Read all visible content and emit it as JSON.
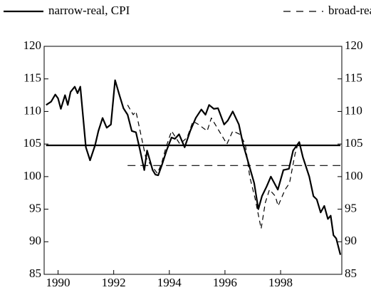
{
  "chart_data": {
    "type": "line",
    "x_ticks_note": null,
    "xlim": [
      1989.5,
      2000.2
    ],
    "xticks": [
      1990,
      1992,
      1994,
      1996,
      1998
    ],
    "ylim": [
      85,
      120
    ],
    "yticks": [
      85,
      90,
      95,
      100,
      105,
      110,
      115,
      120
    ],
    "legend": "top",
    "series": [
      {
        "name": "narrow-real, CPI",
        "color": "#000000",
        "dash": false,
        "x": [
          1989.57,
          1989.75,
          1989.9,
          1990.0,
          1990.1,
          1990.25,
          1990.35,
          1990.45,
          1990.6,
          1990.7,
          1990.8,
          1991.0,
          1991.15,
          1991.33,
          1991.45,
          1991.6,
          1991.75,
          1991.9,
          1992.05,
          1992.2,
          1992.35,
          1992.5,
          1992.65,
          1992.8,
          1992.95,
          1993.1,
          1993.2,
          1993.3,
          1993.4,
          1993.5,
          1993.6,
          1993.75,
          1993.9,
          1994.08,
          1994.2,
          1994.35,
          1994.55,
          1994.75,
          1994.95,
          1995.15,
          1995.3,
          1995.43,
          1995.6,
          1995.75,
          1995.97,
          1996.1,
          1996.28,
          1996.5,
          1996.65,
          1996.85,
          1997.05,
          1997.2,
          1997.33,
          1997.5,
          1997.65,
          1997.9,
          1998.1,
          1998.3,
          1998.45,
          1998.67,
          1998.8,
          1999.03,
          1999.18,
          1999.3,
          1999.44,
          1999.57,
          1999.7,
          1999.8,
          1999.9,
          2000.0,
          2000.15
        ],
        "values": [
          111,
          111.5,
          112.6,
          112,
          110.4,
          112.5,
          111,
          113,
          113.8,
          112.8,
          113.8,
          104.5,
          102.5,
          104.8,
          107,
          109,
          107.5,
          108,
          114.8,
          112.6,
          110.5,
          109.5,
          107,
          106.8,
          104,
          101,
          104,
          102.5,
          101,
          100.3,
          100.2,
          102,
          104,
          106,
          105.8,
          106.5,
          104.5,
          107,
          109,
          110.3,
          109.5,
          111,
          110.4,
          110.5,
          108,
          108.6,
          110,
          108,
          105,
          102,
          99,
          95,
          97,
          98.5,
          100,
          98,
          101,
          101.2,
          104,
          105.3,
          103,
          100,
          97,
          96.5,
          94.5,
          95.5,
          93.5,
          94,
          91,
          90.5,
          88
        ],
        "mean": 104.8,
        "mean_x": [
          1989.57,
          2000.15
        ]
      },
      {
        "name": "broad-real, CPI",
        "color": "#000000",
        "dash": true,
        "x": [
          1992.5,
          1992.7,
          1992.8,
          1993.0,
          1993.15,
          1993.3,
          1993.57,
          1993.72,
          1993.88,
          1994.08,
          1994.38,
          1994.64,
          1994.85,
          1995.05,
          1995.36,
          1995.51,
          1995.72,
          1996.07,
          1996.28,
          1996.53,
          1996.73,
          1996.89,
          1997.09,
          1997.3,
          1997.45,
          1997.6,
          1997.81,
          1997.91,
          1998.16,
          1998.32,
          1998.52,
          1998.62
        ],
        "values": [
          111,
          109.5,
          110,
          106,
          103,
          102,
          100.5,
          102,
          104.5,
          107,
          105,
          106,
          108.5,
          108,
          107,
          109,
          107.5,
          105,
          107,
          106.5,
          105,
          100,
          96.5,
          92,
          96,
          98,
          97,
          95.5,
          98,
          99,
          103.5,
          105
        ],
        "mean": 101.7,
        "mean_x": [
          1992.5,
          2000.15
        ]
      }
    ]
  }
}
